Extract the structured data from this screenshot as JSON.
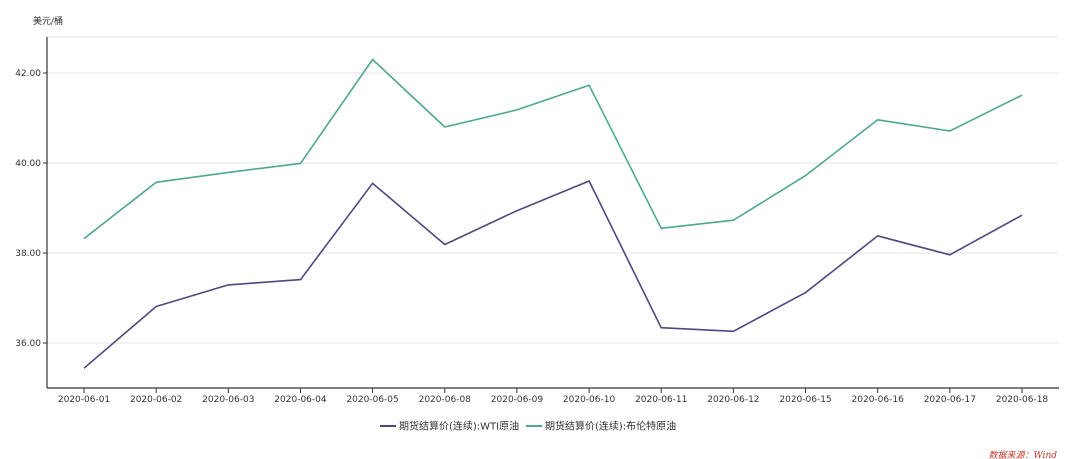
{
  "chart_data": {
    "type": "line",
    "ylabel": "美元/桶",
    "x": [
      "2020-06-01",
      "2020-06-02",
      "2020-06-03",
      "2020-06-04",
      "2020-06-05",
      "2020-06-08",
      "2020-06-09",
      "2020-06-10",
      "2020-06-11",
      "2020-06-12",
      "2020-06-15",
      "2020-06-16",
      "2020-06-17",
      "2020-06-18"
    ],
    "series": [
      {
        "name": "期货结算价(连续):WTI原油",
        "color": "#4b4a7e",
        "values": [
          35.44,
          36.81,
          37.29,
          37.41,
          39.55,
          38.19,
          38.94,
          39.6,
          36.34,
          36.26,
          37.12,
          38.38,
          37.96,
          38.84
        ]
      },
      {
        "name": "期货结算价(连续):布伦特原油",
        "color": "#4fa88a",
        "values": [
          38.32,
          39.57,
          39.79,
          39.99,
          42.3,
          40.8,
          41.18,
          41.73,
          38.55,
          38.73,
          39.72,
          40.96,
          40.71,
          41.51
        ]
      }
    ],
    "yticks": [
      "36.00",
      "38.00",
      "40.00",
      "42.00"
    ],
    "ylim": [
      35.0,
      42.8
    ],
    "grid": true,
    "legend_position": "bottom-center"
  },
  "source_note": "数据来源：Wind"
}
